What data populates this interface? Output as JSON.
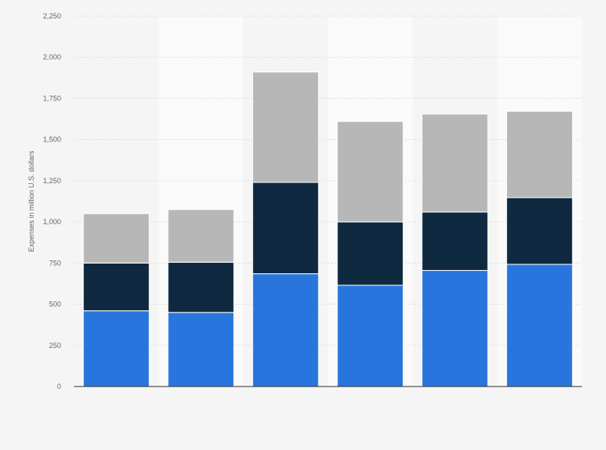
{
  "chart_data": {
    "type": "bar",
    "stacked": true,
    "title": "",
    "xlabel": "",
    "ylabel": "Expenses in million U.S. dollars",
    "categories": [
      "",
      "",
      "",
      "",
      "",
      ""
    ],
    "ylim": [
      0,
      2250
    ],
    "yticks": [
      0,
      250,
      500,
      750,
      1000,
      1250,
      1500,
      1750,
      2000,
      2250
    ],
    "ytick_labels": [
      "0",
      "250",
      "500",
      "750",
      "1,000",
      "1,250",
      "1,500",
      "1,750",
      "2,000",
      "2,250"
    ],
    "grid": true,
    "legend": "none",
    "series": [
      {
        "values": [
          460,
          450,
          685,
          615,
          705,
          742
        ],
        "color": "#2876dd"
      },
      {
        "values": [
          290,
          305,
          555,
          385,
          355,
          405
        ],
        "color": "#0f2a40"
      },
      {
        "values": [
          300,
          320,
          670,
          610,
          595,
          525
        ],
        "color": "#b7b7b7"
      }
    ]
  }
}
